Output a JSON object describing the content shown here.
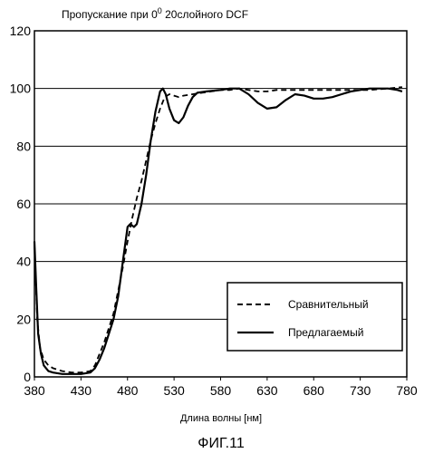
{
  "chart_data": {
    "type": "line",
    "title_main": "Пропускание при 0",
    "title_sup": "0",
    "title_rest": "20слойного DCF",
    "xlabel": "Длина волны [нм]",
    "ylabel": "",
    "xlim": [
      380,
      780
    ],
    "ylim": [
      0,
      120
    ],
    "xticks": [
      380,
      430,
      480,
      530,
      580,
      630,
      680,
      730,
      780
    ],
    "yticks": [
      0,
      20,
      40,
      60,
      80,
      100,
      120
    ],
    "grid": "horizontal",
    "legend_position": "bottom-right",
    "series": [
      {
        "name": "Сравнительный",
        "style": "dashed",
        "color": "#000000",
        "points": [
          [
            380,
            46
          ],
          [
            383,
            20
          ],
          [
            386,
            10
          ],
          [
            390,
            6
          ],
          [
            395,
            4
          ],
          [
            400,
            3
          ],
          [
            410,
            2
          ],
          [
            420,
            1.5
          ],
          [
            430,
            1.5
          ],
          [
            440,
            2
          ],
          [
            445,
            4
          ],
          [
            450,
            8
          ],
          [
            455,
            12
          ],
          [
            460,
            17
          ],
          [
            465,
            22
          ],
          [
            470,
            30
          ],
          [
            475,
            38
          ],
          [
            480,
            47
          ],
          [
            485,
            55
          ],
          [
            490,
            62
          ],
          [
            495,
            68
          ],
          [
            500,
            75
          ],
          [
            505,
            82
          ],
          [
            510,
            88
          ],
          [
            515,
            93
          ],
          [
            520,
            97
          ],
          [
            525,
            98
          ],
          [
            530,
            97.5
          ],
          [
            535,
            97
          ],
          [
            540,
            97.5
          ],
          [
            550,
            98
          ],
          [
            560,
            98.5
          ],
          [
            570,
            99
          ],
          [
            580,
            99.5
          ],
          [
            590,
            99.5
          ],
          [
            600,
            100
          ],
          [
            610,
            99.5
          ],
          [
            620,
            99
          ],
          [
            630,
            99
          ],
          [
            640,
            99.5
          ],
          [
            650,
            99.5
          ],
          [
            660,
            99.5
          ],
          [
            680,
            99.5
          ],
          [
            700,
            99.5
          ],
          [
            720,
            99.5
          ],
          [
            740,
            99.5
          ],
          [
            760,
            100
          ],
          [
            775,
            100.5
          ]
        ]
      },
      {
        "name": "Предлагаемый",
        "style": "solid",
        "color": "#000000",
        "points": [
          [
            380,
            47
          ],
          [
            382,
            30
          ],
          [
            384,
            15
          ],
          [
            387,
            8
          ],
          [
            390,
            4
          ],
          [
            395,
            2
          ],
          [
            400,
            1.5
          ],
          [
            410,
            1
          ],
          [
            420,
            1
          ],
          [
            430,
            1
          ],
          [
            440,
            1.5
          ],
          [
            445,
            3
          ],
          [
            450,
            6
          ],
          [
            455,
            10
          ],
          [
            460,
            15
          ],
          [
            465,
            20
          ],
          [
            470,
            28
          ],
          [
            475,
            40
          ],
          [
            480,
            52
          ],
          [
            483,
            53
          ],
          [
            487,
            52
          ],
          [
            490,
            53
          ],
          [
            495,
            60
          ],
          [
            500,
            70
          ],
          [
            505,
            82
          ],
          [
            510,
            92
          ],
          [
            515,
            99
          ],
          [
            518,
            100
          ],
          [
            521,
            98
          ],
          [
            525,
            93
          ],
          [
            530,
            89
          ],
          [
            535,
            88
          ],
          [
            540,
            90
          ],
          [
            545,
            94
          ],
          [
            550,
            97
          ],
          [
            555,
            98.5
          ],
          [
            565,
            99
          ],
          [
            580,
            99.5
          ],
          [
            590,
            100
          ],
          [
            600,
            100
          ],
          [
            610,
            98
          ],
          [
            620,
            95
          ],
          [
            630,
            93
          ],
          [
            640,
            93.5
          ],
          [
            650,
            96
          ],
          [
            660,
            98
          ],
          [
            670,
            97.5
          ],
          [
            680,
            96.5
          ],
          [
            690,
            96.5
          ],
          [
            700,
            97
          ],
          [
            710,
            98
          ],
          [
            720,
            99
          ],
          [
            730,
            99.5
          ],
          [
            740,
            100
          ],
          [
            750,
            100
          ],
          [
            760,
            100
          ],
          [
            770,
            99.5
          ],
          [
            775,
            99
          ]
        ]
      }
    ],
    "caption": "ФИГ.11"
  }
}
